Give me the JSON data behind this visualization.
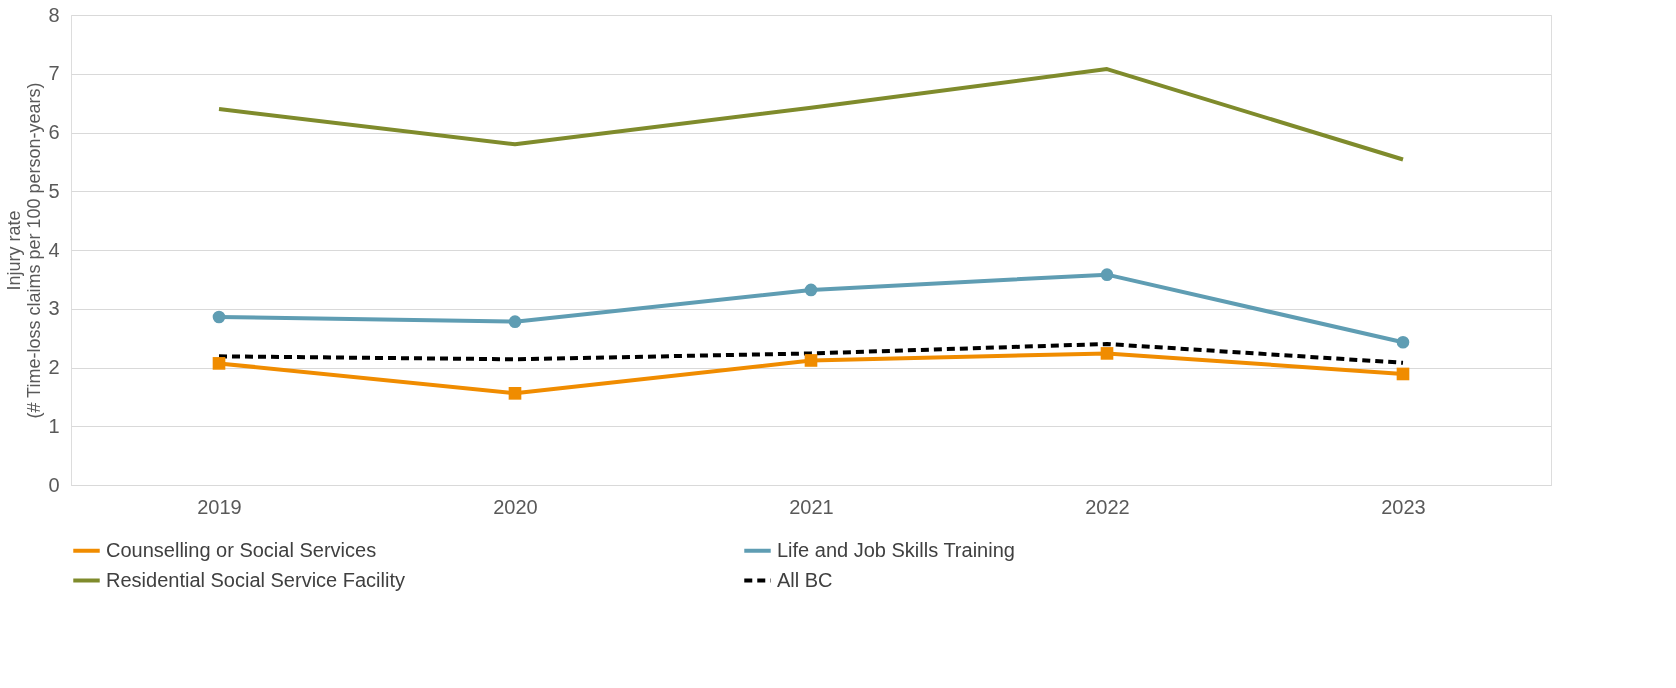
{
  "chart_data": {
    "type": "line",
    "ylabel": "Injury rate\n(# Time-loss claims per 100 person-years)",
    "categories": [
      "2019",
      "2020",
      "2021",
      "2022",
      "2023"
    ],
    "series": [
      {
        "name": "Counselling or Social Services",
        "color": "#f08c00",
        "marker": "square",
        "line_style": "solid",
        "values": [
          2.07,
          1.56,
          2.12,
          2.24,
          1.89
        ]
      },
      {
        "name": "Life and Job Skills Training",
        "color": "#5f9db3",
        "marker": "circle",
        "line_style": "solid",
        "values": [
          2.86,
          2.78,
          3.32,
          3.58,
          2.43
        ]
      },
      {
        "name": "Residential Social Service Facility",
        "color": "#7f8b2c",
        "marker": "none",
        "line_style": "solid",
        "values": [
          6.4,
          5.8,
          6.42,
          7.08,
          5.54
        ]
      },
      {
        "name": "All BC",
        "color": "#000000",
        "marker": "none",
        "line_style": "dashed",
        "values": [
          2.19,
          2.14,
          2.24,
          2.4,
          2.08
        ]
      }
    ],
    "ylim": [
      0,
      8
    ],
    "yticks": [
      0,
      1,
      2,
      3,
      4,
      5,
      6,
      7,
      8
    ],
    "grid": "y",
    "legend": "bottom"
  }
}
